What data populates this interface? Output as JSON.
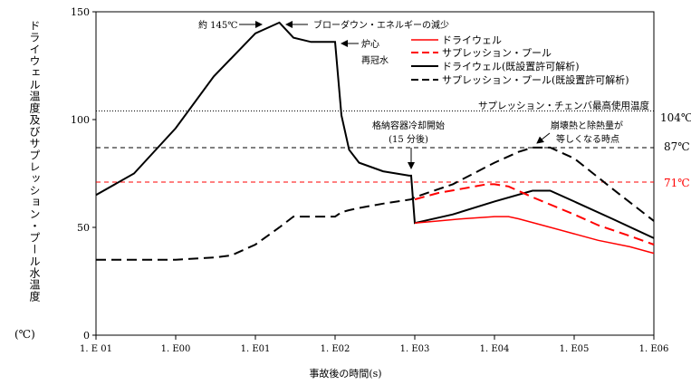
{
  "chart_data": {
    "type": "line",
    "xscale": "log",
    "xlim": [
      0.1,
      1000000
    ],
    "ylim": [
      0,
      150
    ],
    "x_ticks": [
      0.1,
      1,
      10,
      100,
      1000,
      10000,
      100000,
      1000000
    ],
    "x_tick_labels": [
      "1. E 01",
      "1. E00",
      "1. E01",
      "1. E02",
      "1. E03",
      "1. E04",
      "1. E05",
      "1. E06"
    ],
    "y_ticks": [
      0,
      50,
      100,
      150
    ],
    "y_tick_labels": [
      "0",
      "50",
      "100",
      "150"
    ],
    "ylabel": "ドライウェル温度及びサプレッション・プール水温度",
    "ylabel_unit": "(℃)",
    "xlabel": "事故後の時間(s)",
    "grid": false,
    "legend_position": "top-right",
    "series": [
      {
        "name": "ドライウェル",
        "color": "#ff0000",
        "dash": "solid",
        "x": [
          1000,
          2000,
          4000,
          10000,
          15000,
          20000,
          40000,
          100000,
          200000,
          500000,
          1000000
        ],
        "y": [
          52,
          53,
          54,
          55,
          55,
          54,
          51,
          47,
          44,
          41,
          38
        ]
      },
      {
        "name": "サプレッション・プール",
        "color": "#ff0000",
        "dash": "dashed",
        "x": [
          1000,
          2000,
          4000,
          8000,
          10000,
          15000,
          30000,
          100000,
          200000,
          500000,
          1000000
        ],
        "y": [
          63,
          66,
          68,
          70,
          70,
          69,
          64,
          56,
          51,
          46,
          42
        ]
      },
      {
        "name": "ドライウェル(既設置許可解析)",
        "color": "#000000",
        "dash": "solid",
        "x": [
          0.1,
          0.3,
          1,
          3,
          10,
          20,
          30,
          50,
          100,
          120,
          150,
          200,
          400,
          850,
          900,
          1000,
          3000,
          10000,
          30000,
          50000,
          100000,
          300000,
          1000000
        ],
        "y": [
          65,
          75,
          96,
          120,
          140,
          145,
          138,
          136,
          136,
          102,
          86,
          80,
          76,
          74,
          74,
          52,
          56,
          62,
          67,
          67,
          62,
          54,
          45
        ]
      },
      {
        "name": "サプレッション・プール(既設置許可解析)",
        "color": "#000000",
        "dash": "dashed",
        "x": [
          0.1,
          0.3,
          1,
          3,
          5,
          10,
          20,
          30,
          50,
          100,
          120,
          150,
          200,
          400,
          900,
          1000,
          3000,
          10000,
          20000,
          30000,
          50000,
          100000,
          300000,
          1000000
        ],
        "y": [
          35,
          35,
          35,
          36,
          37,
          42,
          50,
          55,
          55,
          55,
          57,
          58,
          59,
          61,
          63,
          64,
          70,
          80,
          85,
          87,
          87,
          82,
          68,
          53
        ]
      }
    ],
    "reference_lines": [
      {
        "y": 104,
        "color": "#000000",
        "style": "dotted",
        "label": "サプレッション・チェンバ最高使用温度",
        "value_label": "104℃"
      },
      {
        "y": 87,
        "color": "#000000",
        "style": "dashed",
        "value_label": "87℃"
      },
      {
        "y": 71,
        "color": "#ff0000",
        "style": "dashed",
        "value_label": "71℃"
      }
    ],
    "annotations": [
      {
        "text": "約 145℃",
        "x": 20,
        "y": 145
      },
      {
        "text": "ブローダウン・エネルギーの減少",
        "x": 20,
        "y": 145
      },
      {
        "text": "炉心",
        "x": 100,
        "y": 136
      },
      {
        "text": "再冠水",
        "x": 100,
        "y": 136
      },
      {
        "text": "格納容器冷却開始",
        "x": 900,
        "y": 74
      },
      {
        "text": "(15 分後)",
        "x": 900,
        "y": 74
      },
      {
        "text": "崩壊熱と除熱量が",
        "x": 40000,
        "y": 87
      },
      {
        "text": "等しくなる時点",
        "x": 40000,
        "y": 87
      }
    ]
  }
}
